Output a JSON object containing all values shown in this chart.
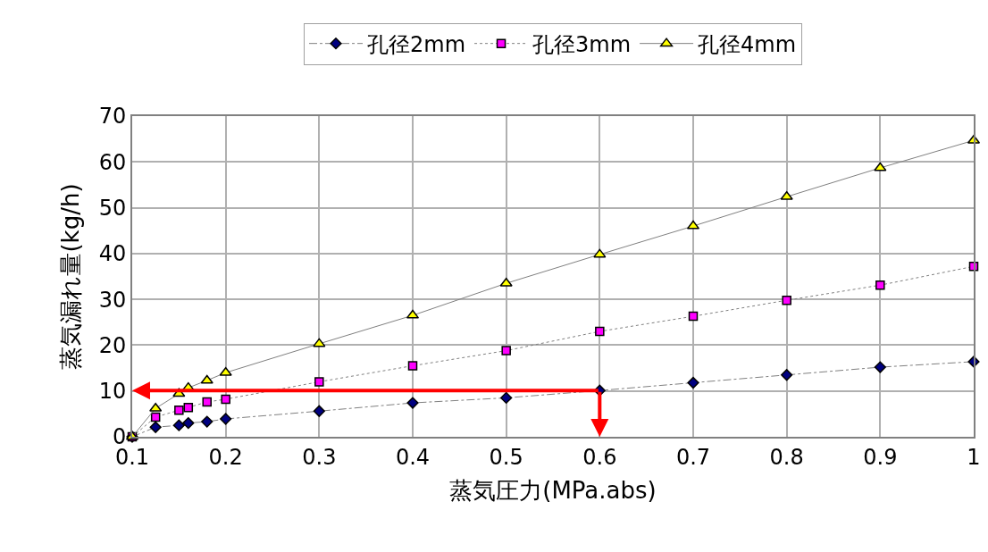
{
  "chart_data": {
    "type": "line",
    "xlabel": "蒸気圧力(MPa.abs)",
    "ylabel": "蒸気漏れ量(kg/h)",
    "x": [
      0.1,
      0.125,
      0.15,
      0.16,
      0.18,
      0.2,
      0.3,
      0.4,
      0.5,
      0.6,
      0.7,
      0.8,
      0.9,
      1.0
    ],
    "series": [
      {
        "name": "孔径2mm",
        "color": "#000080",
        "marker": "diamond",
        "line_style": "dashdot",
        "values": [
          0,
          2.1,
          2.5,
          3.0,
          3.3,
          3.9,
          5.6,
          7.4,
          8.5,
          10.1,
          11.8,
          13.5,
          15.2,
          16.4
        ]
      },
      {
        "name": "孔径3mm",
        "color": "#ff00ff",
        "marker": "square",
        "line_style": "dotted",
        "values": [
          0,
          4.3,
          5.8,
          6.4,
          7.6,
          8.2,
          12,
          15.5,
          18.8,
          23,
          26.3,
          29.8,
          33.1,
          37.2
        ]
      },
      {
        "name": "孔径4mm",
        "color": "#ffff00",
        "marker": "triangle",
        "line_style": "solid",
        "values": [
          0,
          6.2,
          9.4,
          10.7,
          12.3,
          14,
          20.3,
          26.5,
          33.5,
          39.8,
          46,
          52.4,
          58.7,
          64.7
        ]
      }
    ],
    "xlim": [
      0.1,
      1
    ],
    "xticks": [
      0.1,
      0.2,
      0.3,
      0.4,
      0.5,
      0.6,
      0.7,
      0.8,
      0.9,
      {
        "value": 1,
        "label": "1"
      }
    ],
    "ylim": [
      0,
      70
    ],
    "yticks": [
      0,
      10,
      20,
      30,
      40,
      50,
      60,
      70
    ],
    "grid": true,
    "legend": "top"
  }
}
